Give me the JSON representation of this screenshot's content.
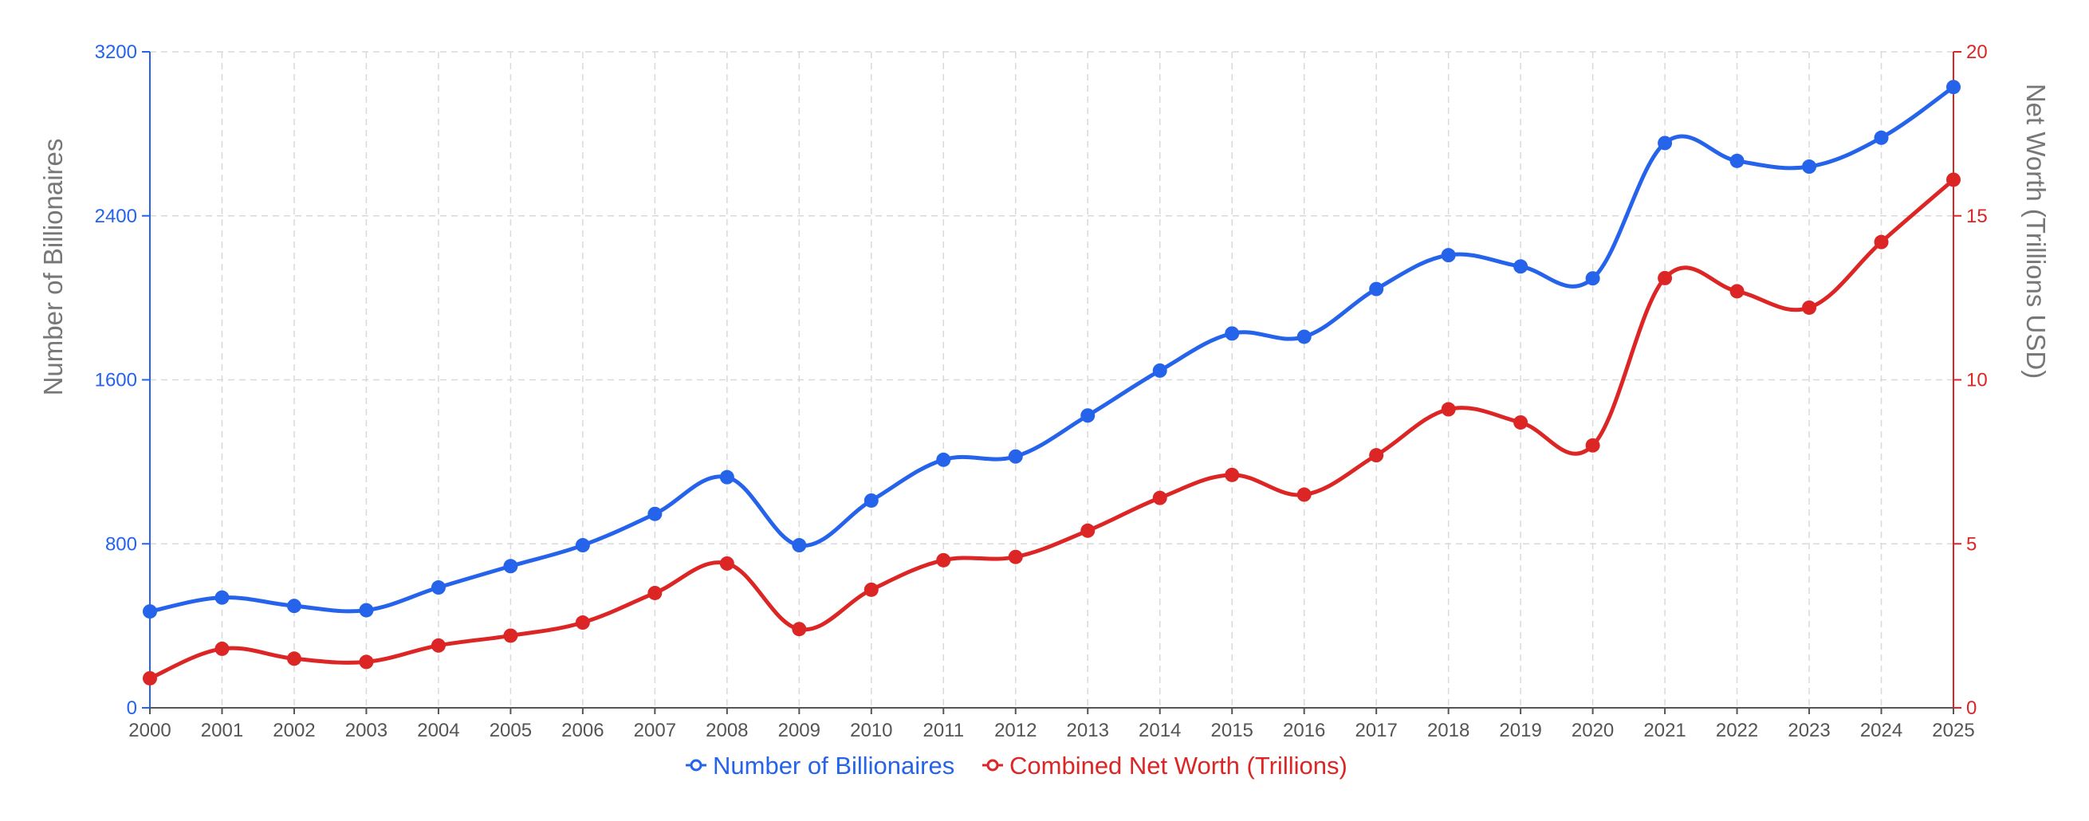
{
  "chart_data": {
    "type": "line",
    "categories": [
      "2000",
      "2001",
      "2002",
      "2003",
      "2004",
      "2005",
      "2006",
      "2007",
      "2008",
      "2009",
      "2010",
      "2011",
      "2012",
      "2013",
      "2014",
      "2015",
      "2016",
      "2017",
      "2018",
      "2019",
      "2020",
      "2021",
      "2022",
      "2023",
      "2024",
      "2025"
    ],
    "series": [
      {
        "name": "Number of Billionaires",
        "axis": "left",
        "color": "#2563eb",
        "values": [
          470,
          538,
          497,
          476,
          587,
          691,
          793,
          946,
          1125,
          793,
          1011,
          1210,
          1226,
          1426,
          1645,
          1826,
          1810,
          2043,
          2208,
          2153,
          2095,
          2755,
          2668,
          2640,
          2781,
          3028
        ]
      },
      {
        "name": "Combined Net Worth (Trillions)",
        "axis": "right",
        "color": "#dc2626",
        "values": [
          0.9,
          1.8,
          1.5,
          1.4,
          1.9,
          2.2,
          2.6,
          3.5,
          4.4,
          2.4,
          3.6,
          4.5,
          4.6,
          5.4,
          6.4,
          7.1,
          6.5,
          7.7,
          9.1,
          8.7,
          8.0,
          13.1,
          12.7,
          12.2,
          14.2,
          16.1
        ]
      }
    ],
    "ylabel": "Number of Billionaires",
    "y2label": "Net Worth (Trillions USD)",
    "ylim": [
      0,
      3200
    ],
    "y2lim": [
      0,
      20
    ],
    "yticks": [
      "0",
      "800",
      "1600",
      "2400",
      "3200"
    ],
    "y2ticks": [
      "0",
      "5",
      "10",
      "15",
      "20"
    ],
    "grid": true,
    "legend": "bottom-center",
    "colors": {
      "left_axis": "#2563eb",
      "right_axis": "#dc2626",
      "grid": "#d9d9d9",
      "axis_title": "#777777",
      "tick_label": "#555555"
    }
  }
}
